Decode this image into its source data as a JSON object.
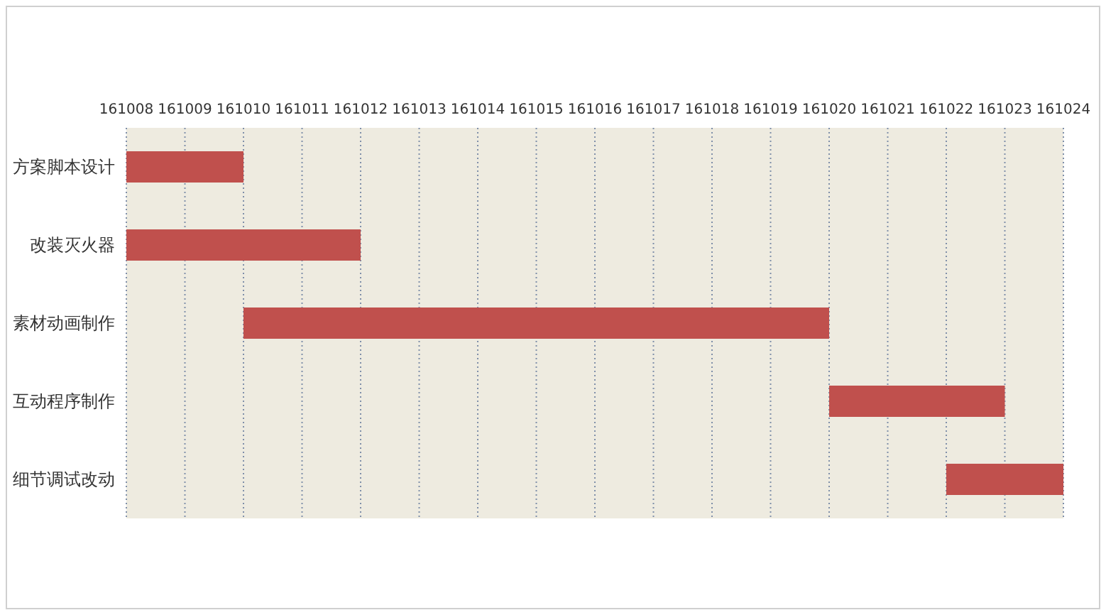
{
  "chart_data": {
    "type": "bar",
    "orientation": "horizontal",
    "categories": [
      "方案脚本设计",
      "改装灭火器",
      "素材动画制作",
      "互动程序制作",
      "细节调试改动"
    ],
    "base": [
      161008,
      161008,
      161010,
      161020,
      161022
    ],
    "values": [
      2,
      4,
      10,
      3,
      2
    ],
    "color": "#c0504d",
    "xlim": [
      161008,
      161024
    ],
    "xticks": [
      161008,
      161009,
      161010,
      161011,
      161012,
      161013,
      161014,
      161015,
      161016,
      161017,
      161018,
      161019,
      161020,
      161021,
      161022,
      161023,
      161024
    ],
    "grid": "x"
  }
}
